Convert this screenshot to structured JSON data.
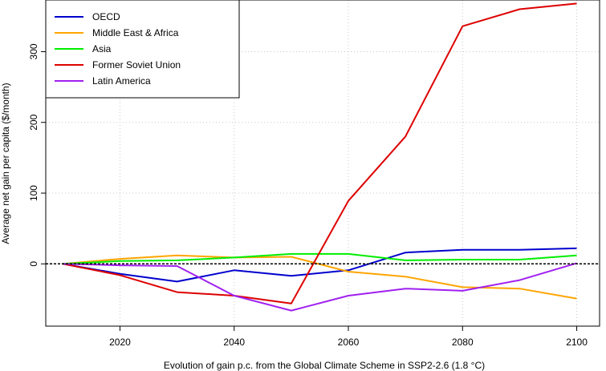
{
  "chart_data": {
    "type": "line",
    "xlabel": "Evolution of  gain  p.c. from the Global Climate Scheme in SSP2-2.6 (1.8 °C)",
    "ylabel": "Average net gain per capita ($/month)",
    "xlim": [
      2007,
      2104
    ],
    "ylim": [
      -88,
      373
    ],
    "x_ticks": [
      2020,
      2040,
      2060,
      2080,
      2100
    ],
    "y_ticks": [
      0,
      100,
      200,
      300
    ],
    "grid": true,
    "grid_style": "dotted",
    "zero_line": true,
    "legend_position": "top-left",
    "x": [
      2010,
      2020,
      2030,
      2040,
      2050,
      2060,
      2070,
      2080,
      2090,
      2100
    ],
    "series": [
      {
        "name": "OECD",
        "color": "#0000cd",
        "values": [
          0,
          -14,
          -25,
          -9,
          -17,
          -9,
          16,
          20,
          20,
          22
        ]
      },
      {
        "name": "Middle East & Africa",
        "color": "#ffa500",
        "values": [
          0,
          7,
          12,
          9,
          10,
          -11,
          -18,
          -33,
          -35,
          -49
        ]
      },
      {
        "name": "Asia",
        "color": "#00ee00",
        "values": [
          0,
          4,
          5,
          9,
          14,
          14,
          5,
          6,
          6,
          12
        ]
      },
      {
        "name": "Former Soviet Union",
        "color": "#dd0000",
        "values": [
          0,
          -16,
          -40,
          -45,
          -56,
          89,
          180,
          336,
          360,
          368
        ]
      },
      {
        "name": "Latin America",
        "color": "#a020f0",
        "values": [
          0,
          -2,
          -3,
          -45,
          -66,
          -45,
          -35,
          -38,
          -23,
          1
        ]
      }
    ]
  }
}
